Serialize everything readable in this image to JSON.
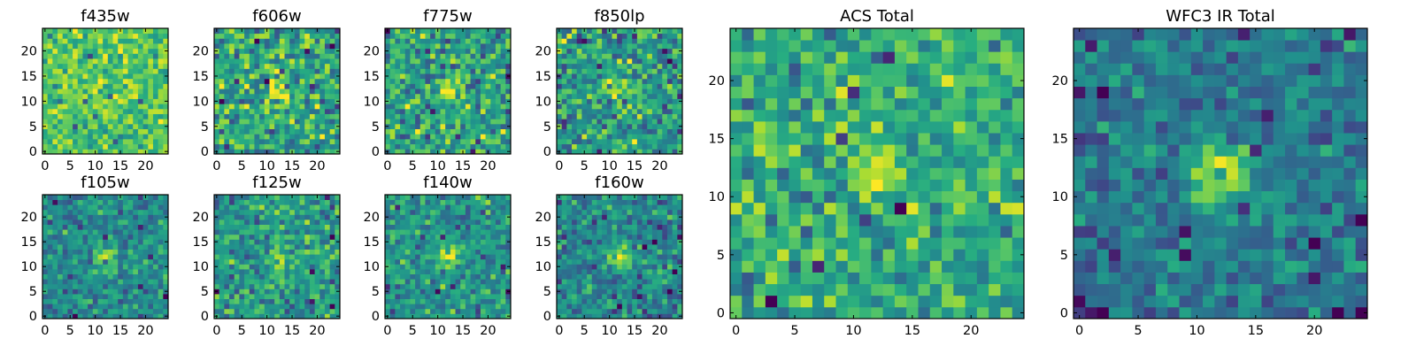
{
  "chart_data": [
    {
      "type": "heatmap",
      "title": "f435w",
      "grid_size": 25,
      "xlim": [
        0,
        24
      ],
      "ylim": [
        0,
        24
      ],
      "xticks": [
        0,
        5,
        10,
        15,
        20
      ],
      "yticks": [
        0,
        5,
        10,
        15,
        20
      ],
      "peak": [
        12,
        12
      ],
      "peak_strength": 0.05,
      "noise_mean": 0.74,
      "noise_sigma": 0.11,
      "seed": 11,
      "colormap": "viridis"
    },
    {
      "type": "heatmap",
      "title": "f606w",
      "grid_size": 25,
      "xlim": [
        0,
        24
      ],
      "ylim": [
        0,
        24
      ],
      "xticks": [
        0,
        5,
        10,
        15,
        20
      ],
      "yticks": [
        0,
        5,
        10,
        15,
        20
      ],
      "peak": [
        12,
        12
      ],
      "peak_strength": 0.3,
      "noise_mean": 0.6,
      "noise_sigma": 0.16,
      "seed": 22,
      "colormap": "viridis"
    },
    {
      "type": "heatmap",
      "title": "f775w",
      "grid_size": 25,
      "xlim": [
        0,
        24
      ],
      "ylim": [
        0,
        24
      ],
      "xticks": [
        0,
        5,
        10,
        15,
        20
      ],
      "yticks": [
        0,
        5,
        10,
        15,
        20
      ],
      "peak": [
        12,
        12
      ],
      "peak_strength": 0.38,
      "noise_mean": 0.58,
      "noise_sigma": 0.16,
      "seed": 33,
      "colormap": "viridis"
    },
    {
      "type": "heatmap",
      "title": "f850lp",
      "grid_size": 25,
      "xlim": [
        0,
        24
      ],
      "ylim": [
        0,
        24
      ],
      "xticks": [
        0,
        5,
        10,
        15,
        20
      ],
      "yticks": [
        0,
        5,
        10,
        15,
        20
      ],
      "peak": [
        12,
        12
      ],
      "peak_strength": 0.42,
      "noise_mean": 0.56,
      "noise_sigma": 0.16,
      "seed": 44,
      "colormap": "viridis"
    },
    {
      "type": "heatmap",
      "title": "ACS Total",
      "grid_size": 25,
      "xlim": [
        0,
        24
      ],
      "ylim": [
        0,
        24
      ],
      "xticks": [
        0,
        5,
        10,
        15,
        20
      ],
      "yticks": [
        0,
        5,
        10,
        15,
        20
      ],
      "peak": [
        12,
        12
      ],
      "peak_strength": 0.35,
      "noise_mean": 0.62,
      "noise_sigma": 0.13,
      "seed": 55,
      "colormap": "viridis"
    },
    {
      "type": "heatmap",
      "title": "WFC3 IR Total",
      "grid_size": 25,
      "xlim": [
        0,
        24
      ],
      "ylim": [
        0,
        24
      ],
      "xticks": [
        0,
        5,
        10,
        15,
        20
      ],
      "yticks": [
        0,
        5,
        10,
        15,
        20
      ],
      "peak": [
        12,
        12
      ],
      "peak_strength": 0.55,
      "noise_mean": 0.42,
      "noise_sigma": 0.1,
      "seed": 66,
      "colormap": "viridis"
    },
    {
      "type": "heatmap",
      "title": "f105w",
      "grid_size": 25,
      "xlim": [
        0,
        24
      ],
      "ylim": [
        0,
        24
      ],
      "xticks": [
        0,
        5,
        10,
        15,
        20
      ],
      "yticks": [
        0,
        5,
        10,
        15,
        20
      ],
      "peak": [
        12,
        12
      ],
      "peak_strength": 0.45,
      "noise_mean": 0.48,
      "noise_sigma": 0.11,
      "seed": 77,
      "colormap": "viridis"
    },
    {
      "type": "heatmap",
      "title": "f125w",
      "grid_size": 25,
      "xlim": [
        0,
        24
      ],
      "ylim": [
        0,
        24
      ],
      "xticks": [
        0,
        5,
        10,
        15,
        20
      ],
      "yticks": [
        0,
        5,
        10,
        15,
        20
      ],
      "peak": [
        12,
        12
      ],
      "peak_strength": 0.3,
      "noise_mean": 0.55,
      "noise_sigma": 0.13,
      "seed": 88,
      "colormap": "viridis"
    },
    {
      "type": "heatmap",
      "title": "f140w",
      "grid_size": 25,
      "xlim": [
        0,
        24
      ],
      "ylim": [
        0,
        24
      ],
      "xticks": [
        0,
        5,
        10,
        15,
        20
      ],
      "yticks": [
        0,
        5,
        10,
        15,
        20
      ],
      "peak": [
        12,
        12
      ],
      "peak_strength": 0.45,
      "noise_mean": 0.52,
      "noise_sigma": 0.12,
      "seed": 99,
      "colormap": "viridis"
    },
    {
      "type": "heatmap",
      "title": "f160w",
      "grid_size": 25,
      "xlim": [
        0,
        24
      ],
      "ylim": [
        0,
        24
      ],
      "xticks": [
        0,
        5,
        10,
        15,
        20
      ],
      "yticks": [
        0,
        5,
        10,
        15,
        20
      ],
      "peak": [
        12,
        12
      ],
      "peak_strength": 0.48,
      "noise_mean": 0.48,
      "noise_sigma": 0.12,
      "seed": 111,
      "colormap": "viridis"
    }
  ]
}
